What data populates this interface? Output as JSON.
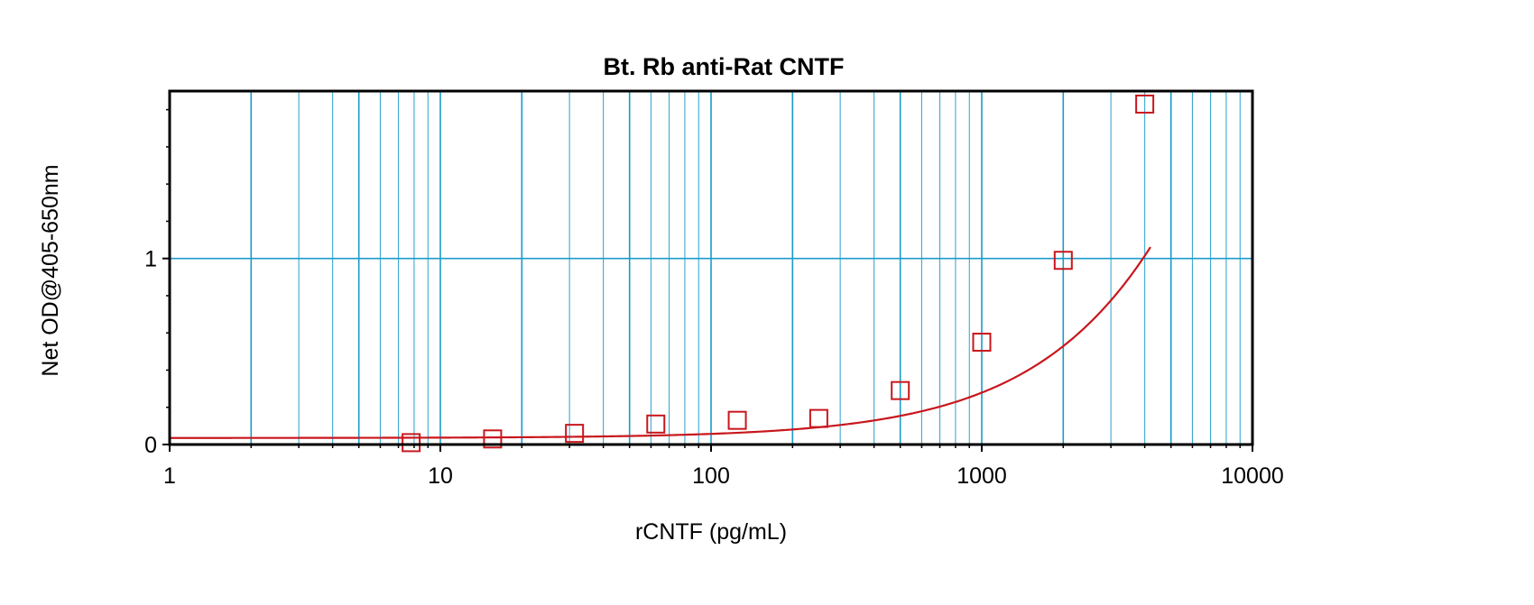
{
  "chart_data": {
    "type": "scatter",
    "title": "Bt. Rb anti-Rat CNTF",
    "xlabel": "rCNTF (pg/mL)",
    "ylabel": "Net OD@405-650nm",
    "x_scale": "log",
    "xlim": [
      1,
      10000
    ],
    "ylim": [
      0,
      1.9
    ],
    "x_tick_labels": [
      "1",
      "10",
      "100",
      "1000",
      "10000"
    ],
    "y_tick_labels": [
      "0",
      "1"
    ],
    "grid": true,
    "colors": {
      "grid": "#1a9bc9",
      "series": "#c8171d",
      "frame": "#000000"
    },
    "series": [
      {
        "marker": "square",
        "x": [
          7.8,
          15.6,
          31.3,
          62.5,
          125,
          250,
          500,
          1000,
          2000,
          4000
        ],
        "y": [
          0.01,
          0.03,
          0.06,
          0.11,
          0.13,
          0.14,
          0.29,
          0.55,
          0.99,
          1.83
        ]
      }
    ],
    "fit": {
      "type": "4PL",
      "bottom": 0.035,
      "top": 12,
      "ec50": 40000,
      "hill": 1.05
    }
  }
}
